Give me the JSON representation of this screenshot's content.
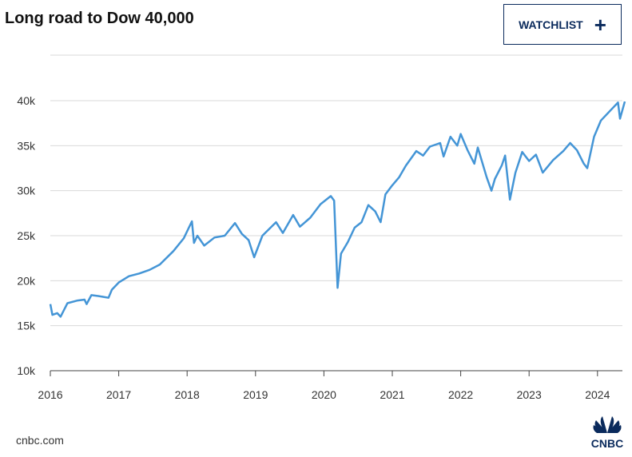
{
  "header": {
    "title": "Long road to Dow 40,000",
    "watchlist_label": "WATCHLIST",
    "watchlist_icon": "plus-icon"
  },
  "footer": {
    "source": "cnbc.com",
    "logo": "CNBC"
  },
  "colors": {
    "line": "#4495d6",
    "brand": "#0a2a5c",
    "grid": "#d9d9d9"
  },
  "chart_data": {
    "type": "line",
    "title": "Long road to Dow 40,000",
    "xlabel": "",
    "ylabel": "",
    "ylim": [
      10000,
      40000
    ],
    "xlim": [
      2016,
      2024.4
    ],
    "grid": true,
    "legend": "none",
    "y_ticks": [
      {
        "v": 10000,
        "label": "10k"
      },
      {
        "v": 15000,
        "label": "15k"
      },
      {
        "v": 20000,
        "label": "20k"
      },
      {
        "v": 25000,
        "label": "25k"
      },
      {
        "v": 30000,
        "label": "30k"
      },
      {
        "v": 35000,
        "label": "35k"
      },
      {
        "v": 40000,
        "label": "40k"
      }
    ],
    "x_ticks": [
      "2016",
      "2017",
      "2018",
      "2019",
      "2020",
      "2021",
      "2022",
      "2023",
      "2024"
    ],
    "x": [
      2016.0,
      2016.03,
      2016.1,
      2016.15,
      2016.25,
      2016.4,
      2016.5,
      2016.53,
      2016.6,
      2016.7,
      2016.85,
      2016.9,
      2017.0,
      2017.15,
      2017.3,
      2017.45,
      2017.6,
      2017.8,
      2017.95,
      2018.07,
      2018.1,
      2018.15,
      2018.25,
      2018.4,
      2018.55,
      2018.7,
      2018.8,
      2018.9,
      2018.98,
      2019.1,
      2019.3,
      2019.4,
      2019.55,
      2019.65,
      2019.8,
      2019.95,
      2020.1,
      2020.15,
      2020.2,
      2020.25,
      2020.35,
      2020.45,
      2020.55,
      2020.65,
      2020.75,
      2020.83,
      2020.9,
      2021.0,
      2021.1,
      2021.2,
      2021.35,
      2021.45,
      2021.55,
      2021.7,
      2021.75,
      2021.85,
      2021.95,
      2022.0,
      2022.1,
      2022.2,
      2022.25,
      2022.38,
      2022.45,
      2022.5,
      2022.6,
      2022.65,
      2022.72,
      2022.8,
      2022.9,
      2023.0,
      2023.1,
      2023.2,
      2023.35,
      2023.5,
      2023.6,
      2023.7,
      2023.8,
      2023.85,
      2023.95,
      2024.05,
      2024.2,
      2024.3,
      2024.33,
      2024.4
    ],
    "y": [
      17400,
      16200,
      16400,
      16000,
      17500,
      17800,
      17900,
      17400,
      18400,
      18300,
      18100,
      19000,
      19800,
      20500,
      20800,
      21200,
      21800,
      23300,
      24700,
      26600,
      24200,
      25000,
      23900,
      24800,
      25000,
      26400,
      25200,
      24500,
      22600,
      25000,
      26500,
      25300,
      27300,
      26000,
      27000,
      28500,
      29400,
      28900,
      19200,
      23000,
      24300,
      25900,
      26500,
      28400,
      27700,
      26500,
      29600,
      30600,
      31500,
      32800,
      34400,
      33900,
      34900,
      35300,
      33800,
      36000,
      35000,
      36300,
      34500,
      33000,
      34800,
      31500,
      30000,
      31300,
      32800,
      33900,
      29000,
      32000,
      34300,
      33300,
      34000,
      32000,
      33400,
      34400,
      35300,
      34500,
      33000,
      32500,
      36000,
      37800,
      39000,
      39800,
      38000,
      39900
    ]
  }
}
